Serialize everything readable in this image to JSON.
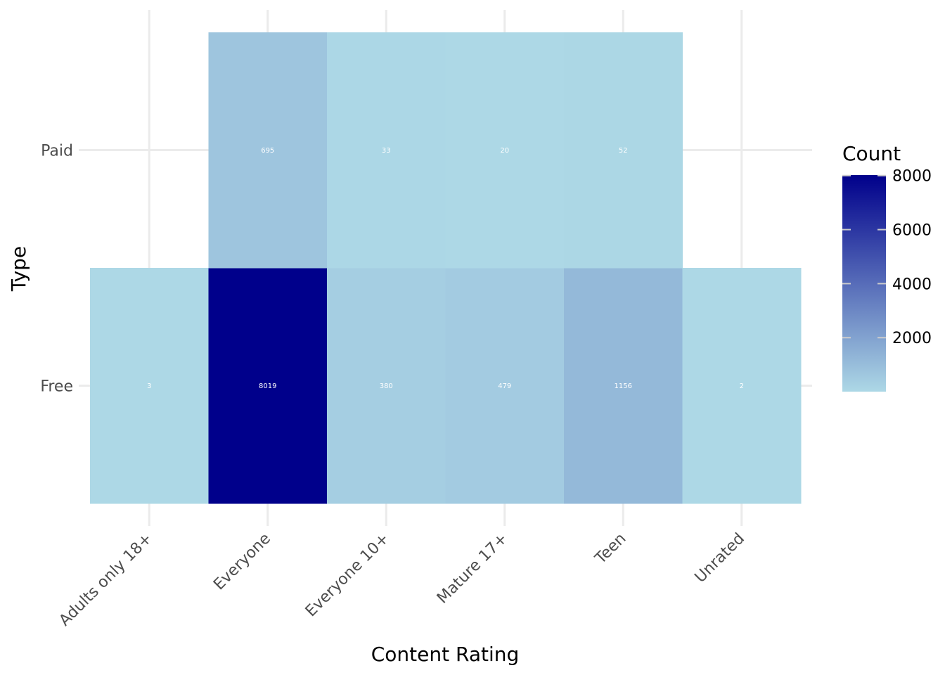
{
  "chart_data": {
    "type": "heatmap",
    "title": "",
    "xlabel": "Content Rating",
    "ylabel": "Type",
    "x_categories": [
      "Adults only 18+",
      "Everyone",
      "Everyone 10+",
      "Mature 17+",
      "Teen",
      "Unrated"
    ],
    "y_categories": [
      "Free",
      "Paid"
    ],
    "cells": [
      {
        "x": "Adults only 18+",
        "y": "Free",
        "value": 3
      },
      {
        "x": "Everyone",
        "y": "Free",
        "value": 8019
      },
      {
        "x": "Everyone 10+",
        "y": "Free",
        "value": 380
      },
      {
        "x": "Mature 17+",
        "y": "Free",
        "value": 479
      },
      {
        "x": "Teen",
        "y": "Free",
        "value": 1156
      },
      {
        "x": "Unrated",
        "y": "Free",
        "value": 2
      },
      {
        "x": "Everyone",
        "y": "Paid",
        "value": 695
      },
      {
        "x": "Everyone 10+",
        "y": "Paid",
        "value": 33
      },
      {
        "x": "Mature 17+",
        "y": "Paid",
        "value": 20
      },
      {
        "x": "Teen",
        "y": "Paid",
        "value": 52
      }
    ],
    "legend": {
      "title": "Count",
      "ticks": [
        2000,
        4000,
        6000,
        8000
      ],
      "range": [
        2,
        8019
      ],
      "position": "right"
    },
    "colors": {
      "low": "#add8e6",
      "high": "#00008b"
    },
    "grid": true
  }
}
